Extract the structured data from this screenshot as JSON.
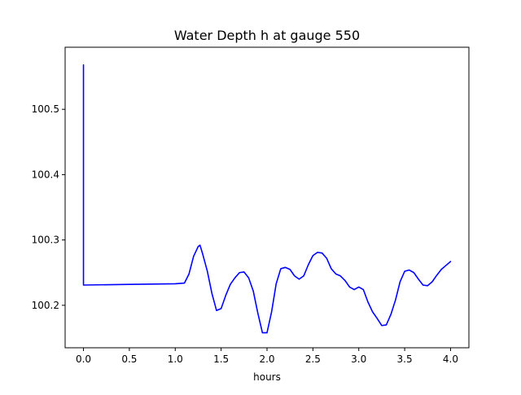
{
  "chart_data": {
    "type": "line",
    "title": "Water Depth h at gauge 550",
    "xlabel": "hours",
    "ylabel": "",
    "xlim": [
      -0.2,
      4.2
    ],
    "ylim": [
      100.135,
      100.595
    ],
    "xticks": [
      0.0,
      0.5,
      1.0,
      1.5,
      2.0,
      2.5,
      3.0,
      3.5,
      4.0
    ],
    "xtick_labels": [
      "0.0",
      "0.5",
      "1.0",
      "1.5",
      "2.0",
      "2.5",
      "3.0",
      "3.5",
      "4.0"
    ],
    "yticks": [
      100.2,
      100.3,
      100.4,
      100.5
    ],
    "ytick_labels": [
      "100.2",
      "100.3",
      "100.4",
      "100.5"
    ],
    "grid": false,
    "legend": false,
    "series": [
      {
        "color": "#0000ff",
        "x": [
          0.0,
          0.0,
          0.0,
          0.5,
          1.0,
          1.1,
          1.15,
          1.2,
          1.25,
          1.27,
          1.3,
          1.35,
          1.4,
          1.45,
          1.5,
          1.55,
          1.6,
          1.65,
          1.7,
          1.75,
          1.8,
          1.85,
          1.9,
          1.95,
          2.0,
          2.05,
          2.1,
          2.15,
          2.2,
          2.25,
          2.3,
          2.35,
          2.4,
          2.45,
          2.5,
          2.55,
          2.6,
          2.65,
          2.7,
          2.75,
          2.8,
          2.85,
          2.9,
          2.95,
          3.0,
          3.05,
          3.1,
          3.15,
          3.2,
          3.25,
          3.3,
          3.35,
          3.4,
          3.45,
          3.5,
          3.55,
          3.6,
          3.65,
          3.7,
          3.75,
          3.8,
          3.85,
          3.9,
          3.95,
          4.0
        ],
        "y": [
          100.568,
          100.231,
          100.231,
          100.232,
          100.233,
          100.234,
          100.248,
          100.275,
          100.29,
          100.292,
          100.278,
          100.252,
          100.218,
          100.192,
          100.195,
          100.215,
          100.232,
          100.242,
          100.25,
          100.251,
          100.242,
          100.222,
          100.188,
          100.158,
          100.158,
          100.19,
          100.233,
          100.256,
          100.258,
          100.255,
          100.245,
          100.24,
          100.245,
          100.262,
          100.276,
          100.281,
          100.28,
          100.272,
          100.256,
          100.248,
          100.245,
          100.238,
          100.228,
          100.224,
          100.228,
          100.224,
          100.205,
          100.19,
          100.18,
          100.169,
          100.17,
          100.186,
          100.208,
          100.236,
          100.252,
          100.254,
          100.25,
          100.24,
          100.231,
          100.23,
          100.236,
          100.246,
          100.255,
          100.261,
          100.267
        ]
      }
    ]
  }
}
